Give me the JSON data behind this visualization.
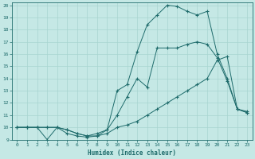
{
  "xlabel": "Humidex (Indice chaleur)",
  "ylabel": "",
  "bg_color": "#c5e8e5",
  "grid_color": "#a8d5d0",
  "line_color": "#1e6b6b",
  "xlim": [
    -0.5,
    23.5
  ],
  "ylim": [
    9,
    20.2
  ],
  "xticks": [
    0,
    1,
    2,
    3,
    4,
    5,
    6,
    7,
    8,
    9,
    10,
    11,
    12,
    13,
    14,
    15,
    16,
    17,
    18,
    19,
    20,
    21,
    22,
    23
  ],
  "yticks": [
    9,
    10,
    11,
    12,
    13,
    14,
    15,
    16,
    17,
    18,
    19,
    20
  ],
  "curve1_x": [
    0,
    1,
    2,
    3,
    4,
    5,
    6,
    7,
    8,
    9,
    10,
    11,
    12,
    13,
    14,
    15,
    16,
    17,
    18,
    19,
    20,
    21,
    22,
    23
  ],
  "curve1_y": [
    10,
    10,
    10,
    9.0,
    10,
    9.8,
    9.5,
    9.3,
    9.3,
    9.5,
    10.0,
    10.2,
    10.5,
    11.0,
    11.5,
    12.0,
    12.5,
    13.0,
    13.5,
    14.0,
    15.5,
    15.8,
    11.5,
    11.2
  ],
  "curve2_x": [
    0,
    1,
    2,
    3,
    4,
    5,
    6,
    7,
    8,
    9,
    10,
    11,
    12,
    13,
    14,
    15,
    16,
    17,
    18,
    19,
    20,
    21,
    22,
    23
  ],
  "curve2_y": [
    10,
    10,
    10,
    10,
    10,
    9.8,
    9.5,
    9.3,
    9.5,
    9.8,
    11.0,
    12.5,
    14.0,
    13.3,
    16.5,
    16.5,
    16.5,
    16.8,
    17.0,
    16.8,
    15.7,
    13.8,
    11.5,
    11.3
  ],
  "curve3_x": [
    0,
    1,
    2,
    3,
    4,
    5,
    6,
    7,
    8,
    9,
    10,
    11,
    12,
    13,
    14,
    15,
    16,
    17,
    18,
    19,
    20,
    21,
    22,
    23
  ],
  "curve3_y": [
    10,
    10,
    10,
    10,
    10,
    9.5,
    9.3,
    9.2,
    9.3,
    9.8,
    13.0,
    13.5,
    16.2,
    18.4,
    19.2,
    20.0,
    19.9,
    19.5,
    19.2,
    19.5,
    16.0,
    14.0,
    11.5,
    11.2
  ]
}
